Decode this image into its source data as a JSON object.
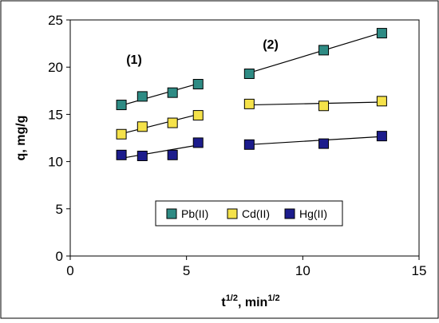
{
  "chart_data": {
    "type": "scatter",
    "title": "",
    "xlabel": {
      "base": "t",
      "sup1": "1/2",
      "mid": ", min",
      "sup2": "1/2"
    },
    "ylabel": "q, mg/g",
    "xlim": [
      0,
      15
    ],
    "ylim": [
      0,
      25
    ],
    "xticks": [
      0,
      5,
      10,
      15
    ],
    "yticks": [
      0,
      5,
      10,
      15,
      20,
      25
    ],
    "grid": false,
    "legend_position": "bottom-center",
    "annotations": [
      "(1)",
      "(2)"
    ],
    "series": [
      {
        "name": "Pb(II)",
        "color": "#2e8b84",
        "points": [
          [
            2.2,
            16.0
          ],
          [
            3.1,
            16.9
          ],
          [
            4.4,
            17.3
          ],
          [
            5.5,
            18.2
          ],
          [
            7.7,
            19.3
          ],
          [
            10.9,
            21.8
          ],
          [
            13.4,
            23.6
          ]
        ],
        "trend": [
          {
            "from": [
              2.2,
              15.95
            ],
            "to": [
              5.5,
              18.25
            ]
          },
          {
            "from": [
              7.7,
              19.4
            ],
            "to": [
              13.4,
              23.65
            ]
          }
        ]
      },
      {
        "name": "Cd(II)",
        "color": "#f5e24a",
        "points": [
          [
            2.2,
            12.9
          ],
          [
            3.1,
            13.7
          ],
          [
            4.4,
            14.1
          ],
          [
            5.5,
            14.9
          ],
          [
            7.7,
            16.1
          ],
          [
            10.9,
            15.9
          ],
          [
            13.4,
            16.4
          ]
        ],
        "trend": [
          {
            "from": [
              2.2,
              12.95
            ],
            "to": [
              5.5,
              15.0
            ]
          },
          {
            "from": [
              7.7,
              16.0
            ],
            "to": [
              13.4,
              16.3
            ]
          }
        ]
      },
      {
        "name": "Hg(II)",
        "color": "#1c1c8c",
        "points": [
          [
            2.2,
            10.7
          ],
          [
            3.1,
            10.6
          ],
          [
            4.4,
            10.7
          ],
          [
            5.5,
            12.0
          ],
          [
            7.7,
            11.8
          ],
          [
            10.9,
            11.9
          ],
          [
            13.4,
            12.7
          ]
        ],
        "trend": [
          {
            "from": [
              2.2,
              10.35
            ],
            "to": [
              5.5,
              11.75
            ]
          },
          {
            "from": [
              7.7,
              11.8
            ],
            "to": [
              13.4,
              12.65
            ]
          }
        ]
      }
    ]
  }
}
